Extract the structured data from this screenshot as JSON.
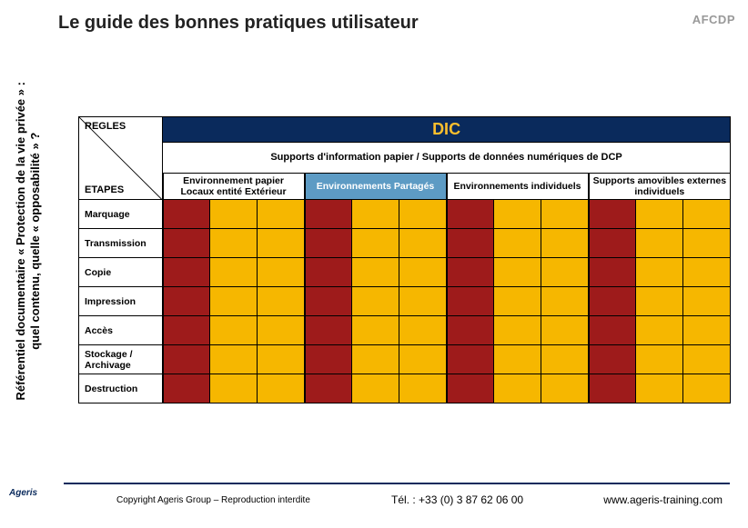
{
  "title": "Le guide des bonnes pratiques utilisateur",
  "logo_right": "AFCDP",
  "side_text_line1": "Référentiel documentaire « Protection de la vie privée » :",
  "side_text_line2": "quel contenu, quelle « opposabilité » ?",
  "table": {
    "corner_top": "REGLES",
    "corner_bottom": "ETAPES",
    "dic": "DIC",
    "supports_header": "Supports d'information papier  /  Supports de données  numériques de DCP",
    "col_headers": [
      "Environnement papier Locaux entité Extérieur",
      "Environnements Partagés",
      "Environnements individuels",
      "Supports amovibles externes individuels"
    ],
    "rows": [
      "Marquage",
      "Transmission",
      "Copie",
      "Impression",
      "Accès",
      "Stockage / Archivage",
      "Destruction"
    ],
    "subcols_per_group": 3,
    "colors": {
      "red": "#9e1b1b",
      "amber": "#f6b700",
      "header_navy": "#0a2a5c",
      "header_gold": "#fdbf2d",
      "shared_blue": "#5d9bc4"
    },
    "cell_pattern": [
      "red",
      "amber",
      "amber",
      "red",
      "amber",
      "amber",
      "red",
      "amber",
      "amber",
      "red",
      "amber",
      "amber"
    ]
  },
  "footer": {
    "logo": "Ageris",
    "copyright": "Copyright Ageris Group – Reproduction interdite",
    "tel": "Tél. : +33 (0) 3 87 62 06 00",
    "url": "www.ageris-training.com"
  }
}
